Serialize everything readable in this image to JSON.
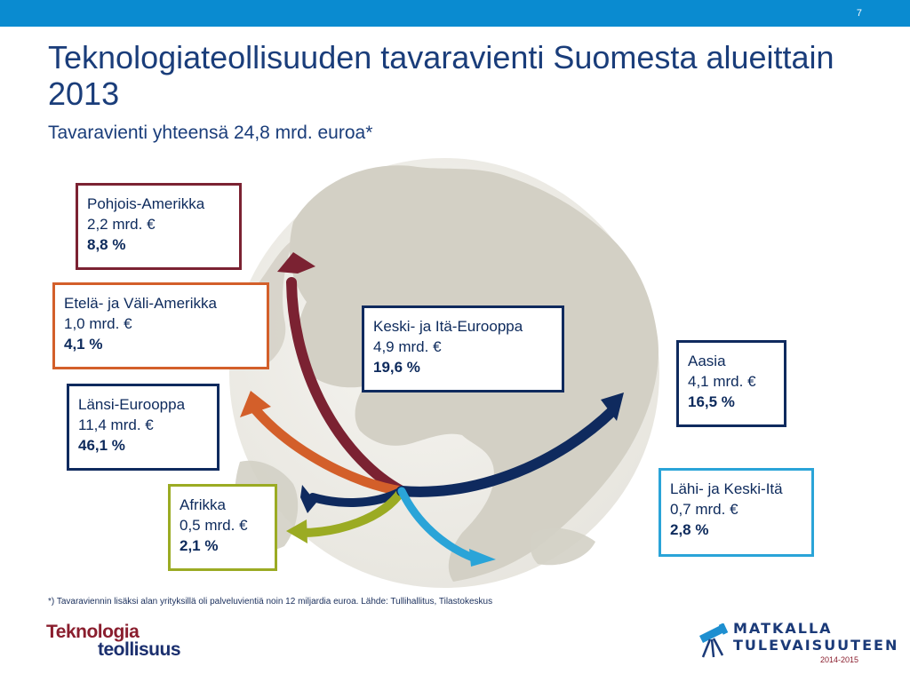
{
  "slide": {
    "number": "7",
    "title": "Teknologiateollisuuden tavaravienti Suomesta alueittain 2013",
    "subtitle": "Tavaravienti yhteensä 24,8 mrd. euroa*"
  },
  "colors": {
    "topbar": "#0a8bd0",
    "text": "#1a3d7a",
    "globe": "#d9d6cc"
  },
  "regions": [
    {
      "name": "Pohjois-Amerikka",
      "value": "2,2 mrd. €",
      "share": "8,8 %",
      "color": "#7b2232"
    },
    {
      "name": "Etelä- ja Väli-Amerikka",
      "value": "1,0 mrd. €",
      "share": "4,1 %",
      "color": "#d35f2a"
    },
    {
      "name": "Länsi-Eurooppa",
      "value": "11,4 mrd. €",
      "share": "46,1 %",
      "color": "#0f2a5e"
    },
    {
      "name": "Afrikka",
      "value": "0,5 mrd. €",
      "share": "2,1 %",
      "color": "#9bab23"
    },
    {
      "name": "Keski- ja Itä-Eurooppa",
      "value": "4,9 mrd. €",
      "share": "19,6 %",
      "color": "#0f2a5e"
    },
    {
      "name": "Aasia",
      "value": "4,1 mrd. €",
      "share": "16,5 %",
      "color": "#0f2a5e"
    },
    {
      "name": "Lähi- ja Keski-Itä",
      "value": "0,7 mrd. €",
      "share": "2,8 %",
      "color": "#2aa4d8"
    }
  ],
  "footnote": "*) Tavaraviennin lisäksi alan yrityksillä oli palveluvientiä noin 12 miljardia euroa. Lähde: Tullihallitus, Tilastokeskus",
  "logos": {
    "left_line1": "Teknologia",
    "left_line2": "teollisuus",
    "right_line1": "MATKALLA",
    "right_line2": "TULEVAISUUTEEN",
    "right_years": "2014-2015"
  }
}
